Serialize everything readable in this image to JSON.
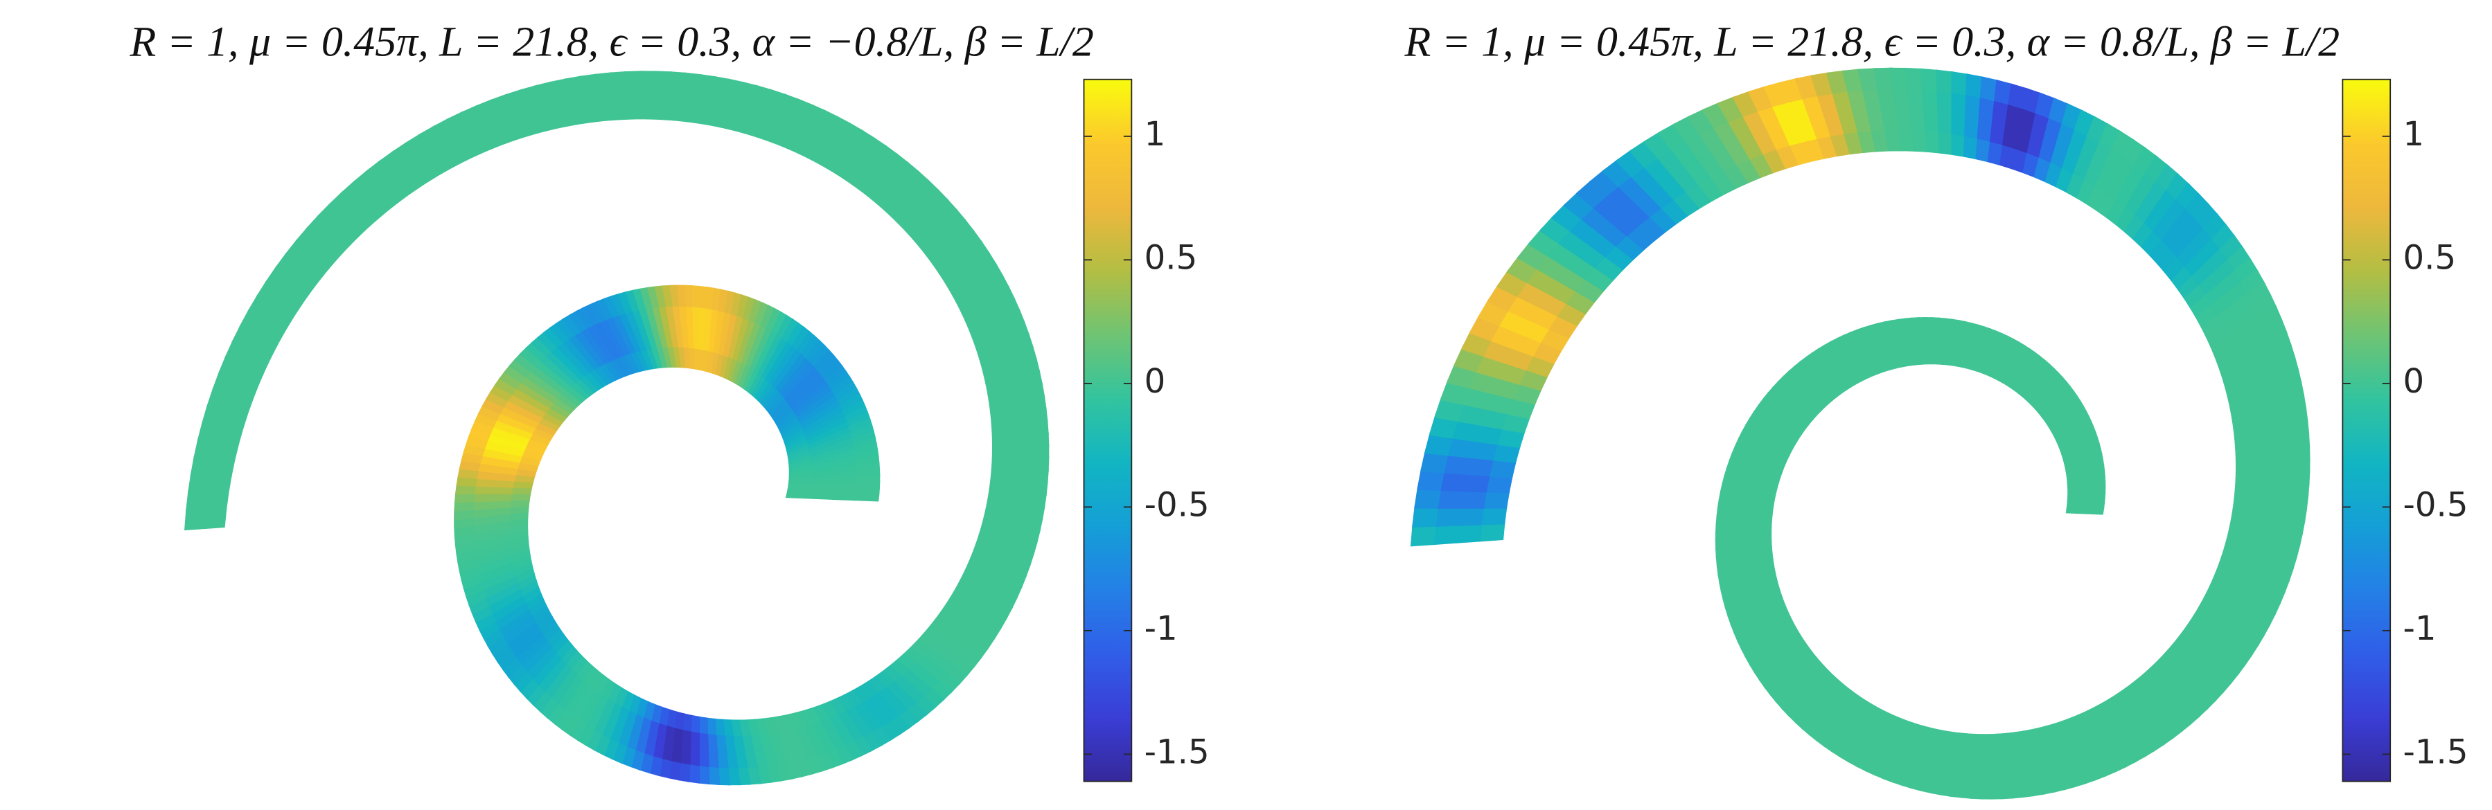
{
  "chart_data": [
    {
      "type": "field",
      "title": "R = 1, μ = 0.45π, L = 21.8, ϵ = 0.3, α = −0.8/L, β = L/2",
      "peak_values": [
        -0.3,
        -1.55,
        -0.6,
        1.2,
        -0.9,
        1.1,
        -0.8
      ],
      "zlim": [
        -1.61,
        1.23
      ],
      "zticks": [
        1,
        0.5,
        0,
        -0.5,
        -1,
        -1.5
      ],
      "colormap": [
        "#35289a",
        "#3a3ed6",
        "#305ee8",
        "#2480e6",
        "#149fd6",
        "#12b5c2",
        "#33c49e",
        "#6fc473",
        "#b3be43",
        "#eeb83c",
        "#fbc92c",
        "#f9fb0e"
      ]
    },
    {
      "type": "field",
      "title": "R = 1, μ = 0.45π, L = 21.8, ϵ = 0.3, α = 0.8/L, β = L/2",
      "peak_values": [
        -1.0,
        1.05,
        -0.95,
        1.2,
        -1.55,
        -0.5
      ],
      "zlim": [
        -1.61,
        1.23
      ],
      "zticks": [
        1,
        0.5,
        0,
        -0.5,
        -1,
        -1.5
      ],
      "colormap": [
        "#35289a",
        "#3a3ed6",
        "#305ee8",
        "#2480e6",
        "#149fd6",
        "#12b5c2",
        "#33c49e",
        "#6fc473",
        "#b3be43",
        "#eeb83c",
        "#fbc92c",
        "#f9fb0e"
      ]
    }
  ]
}
